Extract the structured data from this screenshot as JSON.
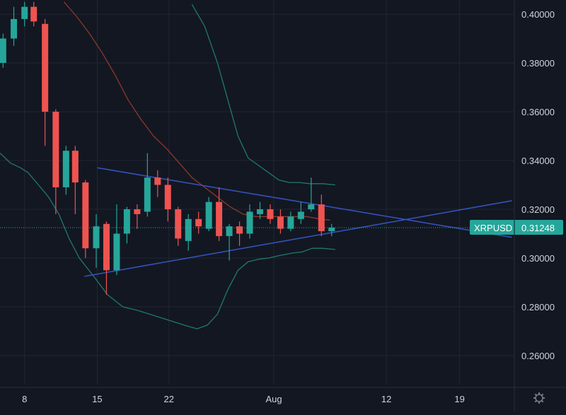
{
  "colors": {
    "background": "#131722",
    "grid": "#222633",
    "axis_line": "#2a2e39",
    "axis_text": "#d1d4dc",
    "up": "#26a69a",
    "down": "#ef5350",
    "band": "#1e7a6e",
    "ma": "#8b3a2a",
    "trendline": "#3352b8",
    "last_price_line": "#26a69a",
    "last_price_badge": "#26a69a",
    "last_price_badge_text": "#ffffff",
    "settings_icon": "#787b86"
  },
  "icons": {
    "settings": "gear-icon"
  },
  "chart_data": {
    "type": "candlestick",
    "symbol": "XRPUSD",
    "last_price": "0.31248",
    "last_price_value": 0.31248,
    "ylim": [
      0.2425,
      0.4055
    ],
    "xlim": [
      0,
      100.5
    ],
    "y_ticks": [
      {
        "value": 0.26,
        "label": "0.26000"
      },
      {
        "value": 0.28,
        "label": "0.28000"
      },
      {
        "value": 0.3,
        "label": "0.30000"
      },
      {
        "value": 0.32,
        "label": "0.32000"
      },
      {
        "value": 0.34,
        "label": "0.34000"
      },
      {
        "value": 0.36,
        "label": "0.36000"
      },
      {
        "value": 0.38,
        "label": "0.38000"
      },
      {
        "value": 0.4,
        "label": "0.40000"
      }
    ],
    "x_ticks": [
      {
        "x": 4.8,
        "label": "8"
      },
      {
        "x": 19.0,
        "label": "15"
      },
      {
        "x": 33.0,
        "label": "22"
      },
      {
        "x": 53.5,
        "label": "Aug"
      },
      {
        "x": 75.5,
        "label": "12"
      },
      {
        "x": 89.8,
        "label": "19"
      }
    ],
    "candles": [
      {
        "x": 0.6,
        "o": 0.38,
        "h": 0.392,
        "l": 0.378,
        "c": 0.39
      },
      {
        "x": 2.7,
        "o": 0.39,
        "h": 0.403,
        "l": 0.387,
        "c": 0.398
      },
      {
        "x": 4.8,
        "o": 0.398,
        "h": 0.405,
        "l": 0.395,
        "c": 0.403
      },
      {
        "x": 6.6,
        "o": 0.403,
        "h": 0.405,
        "l": 0.395,
        "c": 0.397
      },
      {
        "x": 8.8,
        "o": 0.396,
        "h": 0.398,
        "l": 0.346,
        "c": 0.36
      },
      {
        "x": 10.9,
        "o": 0.36,
        "h": 0.361,
        "l": 0.318,
        "c": 0.329
      },
      {
        "x": 12.9,
        "o": 0.329,
        "h": 0.346,
        "l": 0.326,
        "c": 0.344
      },
      {
        "x": 14.7,
        "o": 0.344,
        "h": 0.346,
        "l": 0.318,
        "c": 0.331
      },
      {
        "x": 16.7,
        "o": 0.331,
        "h": 0.332,
        "l": 0.3,
        "c": 0.304
      },
      {
        "x": 18.8,
        "o": 0.304,
        "h": 0.318,
        "l": 0.296,
        "c": 0.313
      },
      {
        "x": 20.8,
        "o": 0.314,
        "h": 0.315,
        "l": 0.285,
        "c": 0.295
      },
      {
        "x": 22.8,
        "o": 0.295,
        "h": 0.322,
        "l": 0.293,
        "c": 0.31
      },
      {
        "x": 24.8,
        "o": 0.31,
        "h": 0.321,
        "l": 0.306,
        "c": 0.32
      },
      {
        "x": 26.8,
        "o": 0.32,
        "h": 0.322,
        "l": 0.312,
        "c": 0.318
      },
      {
        "x": 28.8,
        "o": 0.319,
        "h": 0.343,
        "l": 0.317,
        "c": 0.333
      },
      {
        "x": 30.8,
        "o": 0.333,
        "h": 0.336,
        "l": 0.325,
        "c": 0.33
      },
      {
        "x": 32.8,
        "o": 0.33,
        "h": 0.333,
        "l": 0.315,
        "c": 0.32
      },
      {
        "x": 34.8,
        "o": 0.32,
        "h": 0.321,
        "l": 0.305,
        "c": 0.308
      },
      {
        "x": 36.8,
        "o": 0.307,
        "h": 0.318,
        "l": 0.303,
        "c": 0.316
      },
      {
        "x": 38.8,
        "o": 0.316,
        "h": 0.319,
        "l": 0.31,
        "c": 0.313
      },
      {
        "x": 40.8,
        "o": 0.312,
        "h": 0.325,
        "l": 0.311,
        "c": 0.323
      },
      {
        "x": 42.8,
        "o": 0.323,
        "h": 0.329,
        "l": 0.307,
        "c": 0.309
      },
      {
        "x": 44.8,
        "o": 0.309,
        "h": 0.314,
        "l": 0.299,
        "c": 0.313
      },
      {
        "x": 46.8,
        "o": 0.313,
        "h": 0.315,
        "l": 0.305,
        "c": 0.31
      },
      {
        "x": 48.8,
        "o": 0.31,
        "h": 0.322,
        "l": 0.308,
        "c": 0.319
      },
      {
        "x": 50.8,
        "o": 0.318,
        "h": 0.323,
        "l": 0.316,
        "c": 0.32
      },
      {
        "x": 52.8,
        "o": 0.32,
        "h": 0.322,
        "l": 0.314,
        "c": 0.316
      },
      {
        "x": 54.8,
        "o": 0.317,
        "h": 0.32,
        "l": 0.31,
        "c": 0.312
      },
      {
        "x": 56.8,
        "o": 0.312,
        "h": 0.319,
        "l": 0.311,
        "c": 0.317
      },
      {
        "x": 58.8,
        "o": 0.316,
        "h": 0.323,
        "l": 0.314,
        "c": 0.319
      },
      {
        "x": 60.8,
        "o": 0.32,
        "h": 0.333,
        "l": 0.319,
        "c": 0.322
      },
      {
        "x": 62.8,
        "o": 0.322,
        "h": 0.326,
        "l": 0.309,
        "c": 0.311
      },
      {
        "x": 64.8,
        "o": 0.311,
        "h": 0.314,
        "l": 0.309,
        "c": 0.3125
      }
    ],
    "bollinger_upper": [
      [
        37.5,
        0.404
      ],
      [
        40,
        0.395
      ],
      [
        42.5,
        0.38
      ],
      [
        44.5,
        0.365
      ],
      [
        46.5,
        0.35
      ],
      [
        48.5,
        0.341
      ],
      [
        50.5,
        0.338
      ],
      [
        52.5,
        0.335
      ],
      [
        54.5,
        0.332
      ],
      [
        56.5,
        0.331
      ],
      [
        58.5,
        0.331
      ],
      [
        60.5,
        0.3305
      ],
      [
        63,
        0.3305
      ],
      [
        65.5,
        0.33
      ]
    ],
    "bollinger_lower": [
      [
        0,
        0.343
      ],
      [
        2,
        0.339
      ],
      [
        4,
        0.337
      ],
      [
        5.5,
        0.335
      ],
      [
        7.5,
        0.33
      ],
      [
        9.5,
        0.325
      ],
      [
        11.5,
        0.318
      ],
      [
        13.5,
        0.308
      ],
      [
        15.5,
        0.3
      ],
      [
        18.5,
        0.292
      ],
      [
        21,
        0.285
      ],
      [
        24,
        0.28
      ],
      [
        27,
        0.2785
      ],
      [
        30,
        0.2765
      ],
      [
        33,
        0.2745
      ],
      [
        36,
        0.2725
      ],
      [
        38.5,
        0.271
      ],
      [
        40.5,
        0.2725
      ],
      [
        42.5,
        0.277
      ],
      [
        44.5,
        0.287
      ],
      [
        46.5,
        0.295
      ],
      [
        48.5,
        0.2985
      ],
      [
        50.5,
        0.2995
      ],
      [
        52.5,
        0.3
      ],
      [
        54.5,
        0.301
      ],
      [
        57,
        0.302
      ],
      [
        59,
        0.3025
      ],
      [
        61,
        0.304
      ],
      [
        63,
        0.304
      ],
      [
        65.5,
        0.3035
      ]
    ],
    "moving_average": [
      [
        12.5,
        0.405
      ],
      [
        15,
        0.399
      ],
      [
        17.5,
        0.392
      ],
      [
        20,
        0.384
      ],
      [
        22.5,
        0.375
      ],
      [
        25,
        0.365
      ],
      [
        27.5,
        0.357
      ],
      [
        30,
        0.35
      ],
      [
        32.5,
        0.345
      ],
      [
        35,
        0.339
      ],
      [
        37.5,
        0.333
      ],
      [
        40,
        0.329
      ],
      [
        42.5,
        0.325
      ],
      [
        45,
        0.321
      ],
      [
        47.5,
        0.318
      ],
      [
        50,
        0.317
      ],
      [
        52.5,
        0.317
      ],
      [
        55,
        0.317
      ],
      [
        57.5,
        0.317
      ],
      [
        60,
        0.317
      ],
      [
        62.5,
        0.316
      ],
      [
        64.5,
        0.3155
      ]
    ],
    "trendlines": [
      {
        "from": [
          19.0,
          0.337
        ],
        "to": [
          100.0,
          0.3085
        ]
      },
      {
        "from": [
          16.5,
          0.2925
        ],
        "to": [
          100.0,
          0.3235
        ]
      }
    ]
  }
}
